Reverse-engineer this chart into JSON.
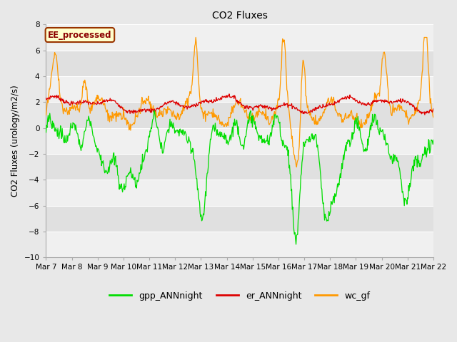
{
  "title": "CO2 Fluxes",
  "ylabel": "CO2 Fluxes (urology/m2/s)",
  "ylim": [
    -10,
    8
  ],
  "yticks": [
    -10,
    -8,
    -6,
    -4,
    -2,
    0,
    2,
    4,
    6,
    8
  ],
  "fig_bg": "#e8e8e8",
  "plot_bg": "#e0e0e0",
  "white_band": "#f0f0f0",
  "line_colors": {
    "gpp": "#00dd00",
    "er": "#dd0000",
    "wc": "#ff9900"
  },
  "legend_label": "EE_processed",
  "legend_bg": "#ffffcc",
  "legend_border": "#993300",
  "bottom_legend": [
    "gpp_ANNnight",
    "er_ANNnight",
    "wc_gf"
  ],
  "date_labels": [
    "Mar 7",
    "Mar 8",
    "Mar 9",
    "Mar 10",
    "Mar 11",
    "Mar 12",
    "Mar 13",
    "Mar 14",
    "Mar 15",
    "Mar 16",
    "Mar 17",
    "Mar 18",
    "Mar 19",
    "Mar 20",
    "Mar 21",
    "Mar 22"
  ]
}
